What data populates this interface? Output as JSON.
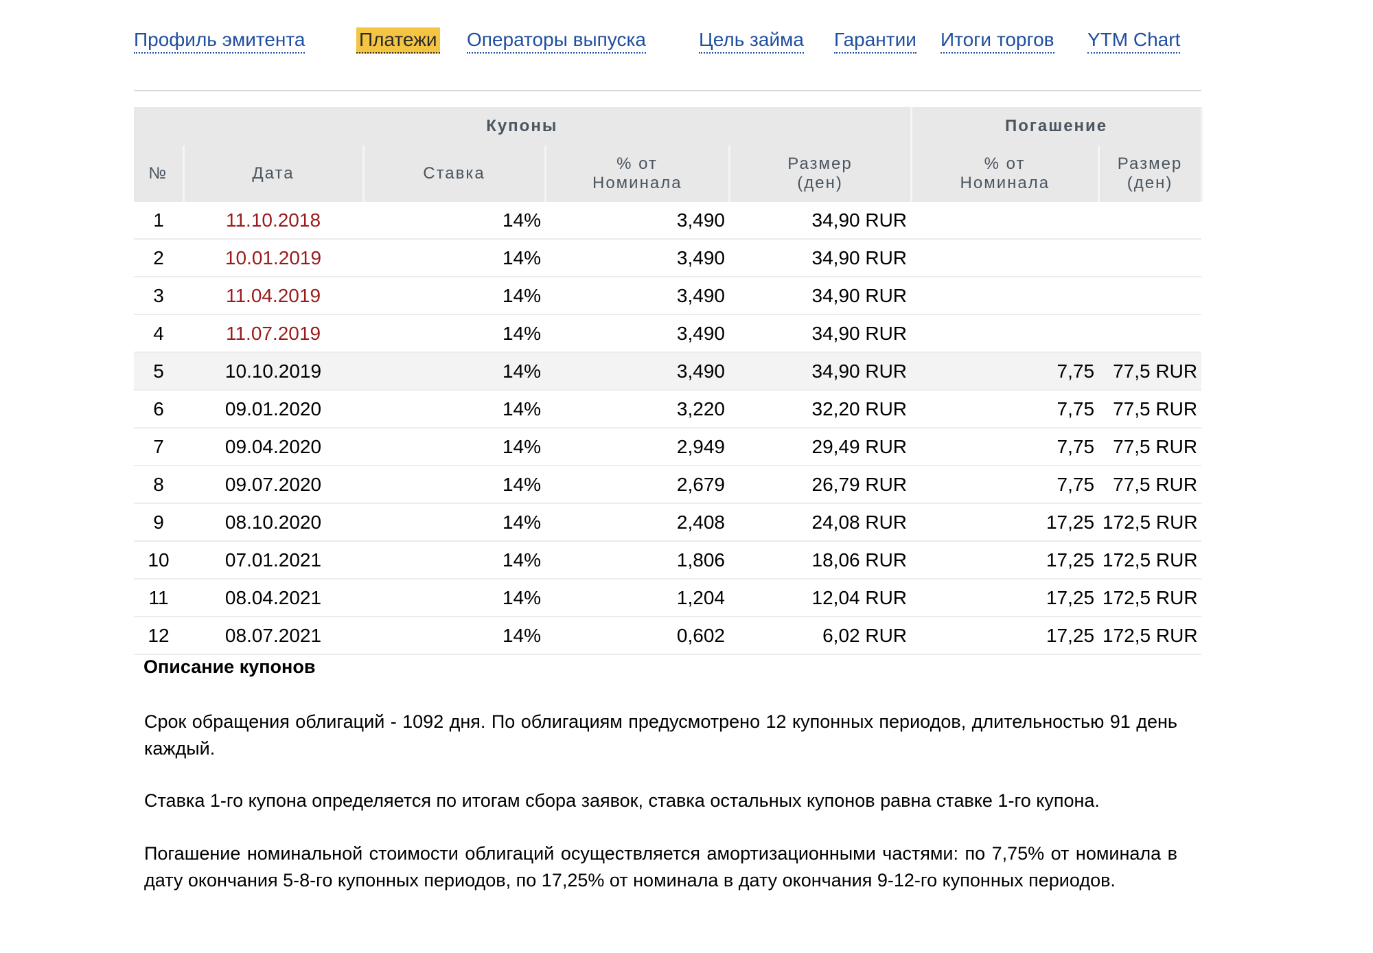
{
  "tabs": [
    {
      "label": "Профиль эмитента",
      "active": false
    },
    {
      "label": "Платежи",
      "active": true
    },
    {
      "label": "Операторы выпуска",
      "active": false
    },
    {
      "label": "Цель займа",
      "active": false
    },
    {
      "label": "Гарантии",
      "active": false
    },
    {
      "label": "Итоги торгов",
      "active": false
    },
    {
      "label": "YTM Chart",
      "active": false
    }
  ],
  "colors": {
    "link": "#1f4fa0",
    "active_tab_bg": "#f4c542",
    "past_date": "#9b1b1b",
    "header_bg": "#e8e8e8"
  },
  "table": {
    "group_headers": {
      "coupons": "Купоны",
      "redemption": "Погашение"
    },
    "columns": {
      "num": "№",
      "date": "Дата",
      "rate": "Ставка",
      "coupon_pct": "% от Номинала",
      "coupon_amount": "Размер (ден)",
      "redemption_pct": "% от Номинала",
      "redemption_amount": "Размер (ден)"
    },
    "rows": [
      {
        "num": "1",
        "date": "11.10.2018",
        "rate": "14%",
        "pct": "3,490",
        "amount": "34,90 RUR",
        "red_pct": "",
        "red_amount": "",
        "past": true,
        "shaded": false
      },
      {
        "num": "2",
        "date": "10.01.2019",
        "rate": "14%",
        "pct": "3,490",
        "amount": "34,90 RUR",
        "red_pct": "",
        "red_amount": "",
        "past": true,
        "shaded": false
      },
      {
        "num": "3",
        "date": "11.04.2019",
        "rate": "14%",
        "pct": "3,490",
        "amount": "34,90 RUR",
        "red_pct": "",
        "red_amount": "",
        "past": true,
        "shaded": false
      },
      {
        "num": "4",
        "date": "11.07.2019",
        "rate": "14%",
        "pct": "3,490",
        "amount": "34,90 RUR",
        "red_pct": "",
        "red_amount": "",
        "past": true,
        "shaded": false
      },
      {
        "num": "5",
        "date": "10.10.2019",
        "rate": "14%",
        "pct": "3,490",
        "amount": "34,90 RUR",
        "red_pct": "7,75",
        "red_amount": "77,5 RUR",
        "past": false,
        "shaded": true
      },
      {
        "num": "6",
        "date": "09.01.2020",
        "rate": "14%",
        "pct": "3,220",
        "amount": "32,20 RUR",
        "red_pct": "7,75",
        "red_amount": "77,5 RUR",
        "past": false,
        "shaded": false
      },
      {
        "num": "7",
        "date": "09.04.2020",
        "rate": "14%",
        "pct": "2,949",
        "amount": "29,49 RUR",
        "red_pct": "7,75",
        "red_amount": "77,5 RUR",
        "past": false,
        "shaded": false
      },
      {
        "num": "8",
        "date": "09.07.2020",
        "rate": "14%",
        "pct": "2,679",
        "amount": "26,79 RUR",
        "red_pct": "7,75",
        "red_amount": "77,5 RUR",
        "past": false,
        "shaded": false
      },
      {
        "num": "9",
        "date": "08.10.2020",
        "rate": "14%",
        "pct": "2,408",
        "amount": "24,08 RUR",
        "red_pct": "17,25",
        "red_amount": "172,5 RUR",
        "past": false,
        "shaded": false
      },
      {
        "num": "10",
        "date": "07.01.2021",
        "rate": "14%",
        "pct": "1,806",
        "amount": "18,06 RUR",
        "red_pct": "17,25",
        "red_amount": "172,5 RUR",
        "past": false,
        "shaded": false
      },
      {
        "num": "11",
        "date": "08.04.2021",
        "rate": "14%",
        "pct": "1,204",
        "amount": "12,04 RUR",
        "red_pct": "17,25",
        "red_amount": "172,5 RUR",
        "past": false,
        "shaded": false
      },
      {
        "num": "12",
        "date": "08.07.2021",
        "rate": "14%",
        "pct": "0,602",
        "amount": "6,02 RUR",
        "red_pct": "17,25",
        "red_amount": "172,5 RUR",
        "past": false,
        "shaded": false
      }
    ]
  },
  "description": {
    "title": "Описание купонов",
    "paragraphs": [
      "Срок обращения облигаций - 1092 дня. По облигациям предусмотрено 12 купонных периодов, длительностью 91 день каждый.",
      "Ставка 1-го купона определяется по итогам сбора заявок, ставка остальных купонов равна ставке 1-го купона.",
      "Погашение номинальной стоимости облигаций осуществляется амортизационными частями: по 7,75% от номинала в дату окончания 5-8-го купонных периодов, по 17,25% от номинала в дату окончания 9-12-го купонных периодов."
    ]
  }
}
